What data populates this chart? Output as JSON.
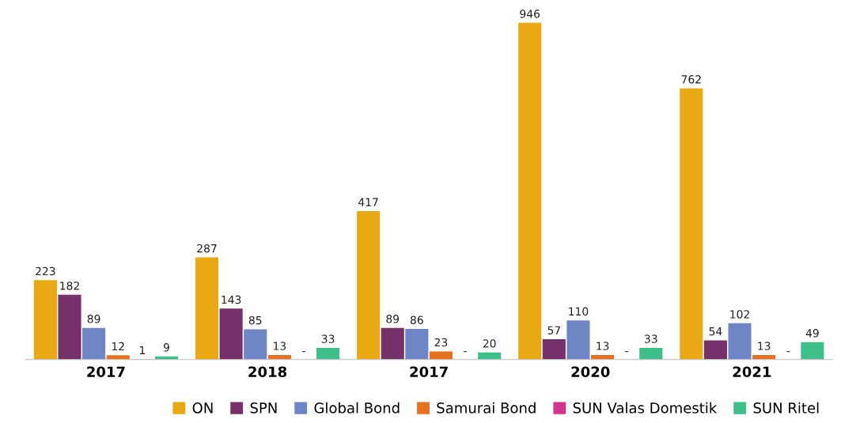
{
  "chart_data": {
    "type": "bar",
    "categories": [
      "2017",
      "2018",
      "2017",
      "2020",
      "2021"
    ],
    "series": [
      {
        "name": "ON",
        "color": "#e8a913",
        "values": [
          223,
          287,
          417,
          946,
          762
        ],
        "value_labels": [
          "223",
          "287",
          "417",
          "946",
          "762"
        ]
      },
      {
        "name": "SPN",
        "color": "#76306a",
        "values": [
          182,
          143,
          89,
          57,
          54
        ],
        "value_labels": [
          "182",
          "143",
          "89",
          "57",
          "54"
        ]
      },
      {
        "name": "Global Bond",
        "color": "#6f86c6",
        "values": [
          89,
          85,
          86,
          110,
          102
        ],
        "value_labels": [
          "89",
          "85",
          "86",
          "110",
          "102"
        ]
      },
      {
        "name": "Samurai Bond",
        "color": "#e8711f",
        "values": [
          12,
          13,
          23,
          13,
          13
        ],
        "value_labels": [
          "12",
          "13",
          "23",
          "13",
          "13"
        ]
      },
      {
        "name": "SUN Valas Domestik",
        "color": "#d6338f",
        "values": [
          1,
          null,
          null,
          null,
          null
        ],
        "value_labels": [
          "1",
          "-",
          "-",
          "-",
          "-"
        ]
      },
      {
        "name": "SUN Ritel",
        "color": "#3dbf8a",
        "values": [
          9,
          33,
          20,
          33,
          49
        ],
        "value_labels": [
          "9",
          "33",
          "20",
          "33",
          "49"
        ]
      }
    ],
    "legend": "bottom",
    "grid": false
  }
}
